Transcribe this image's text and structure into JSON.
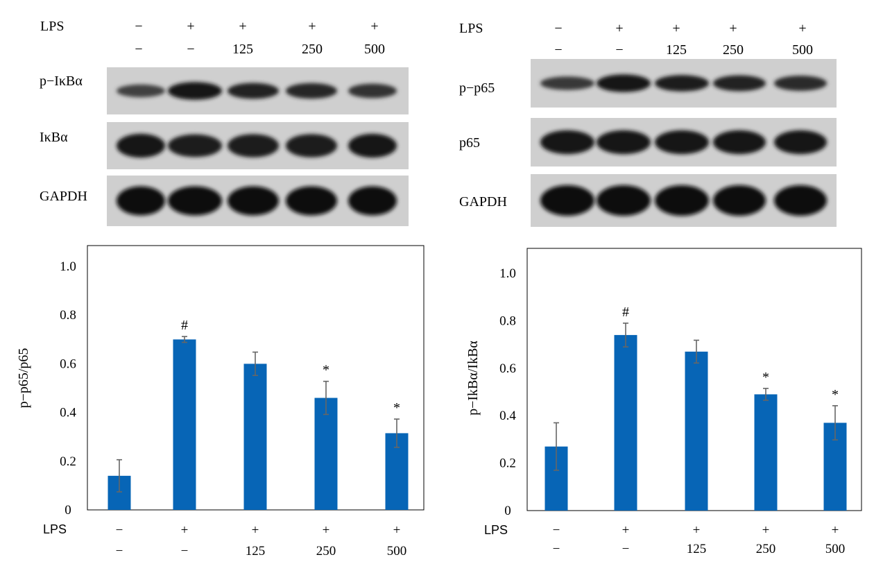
{
  "treatment_labels": {
    "lps": "LPS",
    "lps_row": [
      "−",
      "+",
      "+",
      "+",
      "+"
    ],
    "dose_row": [
      "−",
      "−",
      "125",
      "250",
      "500"
    ]
  },
  "blots": [
    {
      "id": "left",
      "rows": [
        {
          "label": "p−IκBα",
          "intensity": [
            0.35,
            0.95,
            0.75,
            0.7,
            0.55
          ]
        },
        {
          "label": "IκBα",
          "intensity": [
            0.9,
            0.8,
            0.85,
            0.85,
            0.9
          ]
        },
        {
          "label": "GAPDH",
          "intensity": [
            1.0,
            1.0,
            1.0,
            1.0,
            1.0
          ]
        }
      ]
    },
    {
      "id": "right",
      "rows": [
        {
          "label": "p−p65",
          "intensity": [
            0.45,
            0.95,
            0.8,
            0.75,
            0.65
          ]
        },
        {
          "label": "p65",
          "intensity": [
            0.9,
            0.9,
            0.9,
            0.9,
            0.9
          ]
        },
        {
          "label": "GAPDH",
          "intensity": [
            1.0,
            1.0,
            1.0,
            1.0,
            1.0
          ]
        }
      ]
    }
  ],
  "colors": {
    "bar": "#0765b6",
    "error": "#666666",
    "frame": "#000000"
  },
  "chart_data": [
    {
      "type": "bar",
      "categories": [
        "1",
        "2",
        "3",
        "4",
        "5"
      ],
      "values": [
        0.14,
        0.7,
        0.6,
        0.46,
        0.315
      ],
      "errors": [
        0.066,
        0.012,
        0.048,
        0.068,
        0.058
      ],
      "annotations": [
        "",
        "#",
        "",
        "*",
        "*"
      ],
      "ylabel": "p−p65/p65",
      "yticks": [
        "0",
        "0.2",
        "0.4",
        "0.6",
        "0.8",
        "1.0"
      ],
      "ylim": [
        0,
        1.0
      ],
      "grid": false,
      "xlabel_rows": {
        "lps": "LPS",
        "row1": [
          "−",
          "+",
          "+",
          "+",
          "+"
        ],
        "row2": [
          "−",
          "−",
          "125",
          "250",
          "500"
        ]
      }
    },
    {
      "type": "bar",
      "categories": [
        "1",
        "2",
        "3",
        "4",
        "5"
      ],
      "values": [
        0.27,
        0.74,
        0.67,
        0.49,
        0.37
      ],
      "errors": [
        0.1,
        0.05,
        0.048,
        0.025,
        0.072
      ],
      "annotations": [
        "",
        "#",
        "",
        "*",
        "*"
      ],
      "ylabel": "p−IkBα/IkBα",
      "yticks": [
        "0",
        "0.2",
        "0.4",
        "0.6",
        "0.8",
        "1.0"
      ],
      "ylim": [
        0,
        1.0
      ],
      "grid": false,
      "xlabel_rows": {
        "lps": "LPS",
        "row1": [
          "−",
          "+",
          "+",
          "+",
          "+"
        ],
        "row2": [
          "−",
          "−",
          "125",
          "250",
          "500"
        ]
      }
    }
  ]
}
